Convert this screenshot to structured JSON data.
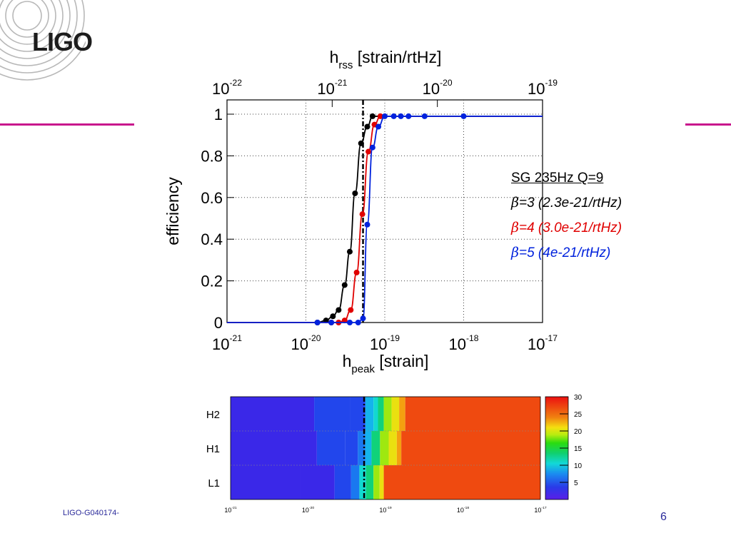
{
  "slide": {
    "logo_text": "LIGO",
    "footer_id": "LIGO-G040174-",
    "page_number": "6",
    "accent_color": "#c8168c"
  },
  "chart_data": [
    {
      "type": "line",
      "title": "",
      "x_bottom": {
        "label_main": "h",
        "label_sub": "peak",
        "label_unit": "[strain]",
        "scale": "log",
        "range": [
          1e-21,
          1e-17
        ],
        "tick_base": "10",
        "tick_exponents": [
          "-21",
          "-20",
          "-19",
          "-18",
          "-17"
        ]
      },
      "x_top": {
        "label_main": "h",
        "label_sub": "rss",
        "label_unit": "[strain/rtHz]",
        "scale": "log",
        "range": [
          1e-22,
          1e-19
        ],
        "tick_base": "10",
        "tick_exponents": [
          "-22",
          "-21",
          "-20",
          "-19"
        ]
      },
      "ylabel": "efficiency",
      "ylim": [
        0,
        1
      ],
      "yticks": [
        "0",
        "0.2",
        "0.4",
        "0.6",
        "0.8",
        "1"
      ],
      "grid": true,
      "reference_line_x": 5.3e-20,
      "legend": {
        "placement": "right",
        "title": "SG 235Hz Q=9",
        "entries": [
          {
            "beta": "β",
            "text": "=3 (2.3e-21/rtHz)",
            "color": "#000000"
          },
          {
            "beta": "β",
            "text": "=4 (3.0e-21/rtHz)",
            "color": "#e00000"
          },
          {
            "beta": "β",
            "text": "=5 (4e-21/rtHz)",
            "color": "#0022dd"
          }
        ]
      },
      "series": [
        {
          "color": "#000000",
          "x": [
            1.4e-20,
            1.8e-20,
            2.2e-20,
            2.6e-20,
            3.1e-20,
            3.6e-20,
            4.2e-20,
            5e-20,
            6e-20,
            7e-20
          ],
          "y": [
            0.0,
            0.01,
            0.03,
            0.06,
            0.18,
            0.34,
            0.62,
            0.86,
            0.94,
            0.99
          ]
        },
        {
          "color": "#e00000",
          "x": [
            2.1e-20,
            2.6e-20,
            3.1e-20,
            3.7e-20,
            4.4e-20,
            5.2e-20,
            6.2e-20,
            7.4e-20,
            8.8e-20
          ],
          "y": [
            0.0,
            0.0,
            0.01,
            0.06,
            0.24,
            0.52,
            0.82,
            0.95,
            0.99
          ]
        },
        {
          "color": "#0022dd",
          "x": [
            1.4e-20,
            2.1e-20,
            3.6e-20,
            4.6e-20,
            5.3e-20,
            6e-20,
            7e-20,
            8.3e-20,
            1e-19,
            1.3e-19,
            1.6e-19,
            2e-19,
            3.2e-19,
            1e-18
          ],
          "y": [
            0.0,
            0.0,
            0.0,
            0.0,
            0.02,
            0.47,
            0.84,
            0.94,
            0.99,
            0.99,
            0.99,
            0.99,
            0.99,
            0.99
          ]
        }
      ]
    },
    {
      "type": "heatmap",
      "rows": [
        "H2",
        "H1",
        "L1"
      ],
      "x_scale": "log",
      "x_range": [
        1e-21,
        1e-17
      ],
      "x_tick_base": "10",
      "x_tick_exponents": [
        "-21",
        "-20",
        "-19",
        "-18",
        "-17"
      ],
      "color_scale": {
        "min": 0,
        "max": 30,
        "ticks": [
          "5",
          "10",
          "15",
          "20",
          "25",
          "30"
        ]
      },
      "reference_line_x": 5.3e-20,
      "cells": [
        {
          "row": "H2",
          "ranges": [
            [
              1e-21,
              1.2e-20,
              2
            ],
            [
              1.2e-20,
              3.5e-20,
              4
            ],
            [
              3.5e-20,
              5.5e-20,
              6
            ],
            [
              5.5e-20,
              7e-20,
              9
            ],
            [
              7e-20,
              8e-20,
              12
            ],
            [
              8e-20,
              9.5e-20,
              16
            ],
            [
              9.5e-20,
              1.2e-19,
              19
            ],
            [
              1.2e-19,
              1.5e-19,
              22
            ],
            [
              1.5e-19,
              1.8e-19,
              25
            ],
            [
              1.8e-19,
              1e-17,
              28
            ]
          ]
        },
        {
          "row": "H1",
          "ranges": [
            [
              1e-21,
              1.3e-20,
              2
            ],
            [
              1.3e-20,
              3e-20,
              4
            ],
            [
              3e-20,
              4.4e-20,
              6
            ],
            [
              4.4e-20,
              5.5e-20,
              8
            ],
            [
              5.5e-20,
              6.6e-20,
              11
            ],
            [
              6.6e-20,
              8.5e-20,
              15
            ],
            [
              8.5e-20,
              1.1e-19,
              19
            ],
            [
              1.1e-19,
              1.4e-19,
              23
            ],
            [
              1.4e-19,
              1.6e-19,
              25
            ],
            [
              1.6e-19,
              1e-17,
              28
            ]
          ]
        },
        {
          "row": "L1",
          "ranges": [
            [
              1e-21,
              8e-21,
              2
            ],
            [
              8e-21,
              2.2e-20,
              3
            ],
            [
              2.2e-20,
              3.6e-20,
              5
            ],
            [
              3.6e-20,
              4.6e-20,
              8
            ],
            [
              4.6e-20,
              5.6e-20,
              12
            ],
            [
              5.6e-20,
              7e-20,
              16
            ],
            [
              7e-20,
              8.4e-20,
              19
            ],
            [
              8.4e-20,
              9.5e-20,
              23
            ],
            [
              9.5e-20,
              1e-17,
              28
            ]
          ]
        }
      ]
    }
  ]
}
